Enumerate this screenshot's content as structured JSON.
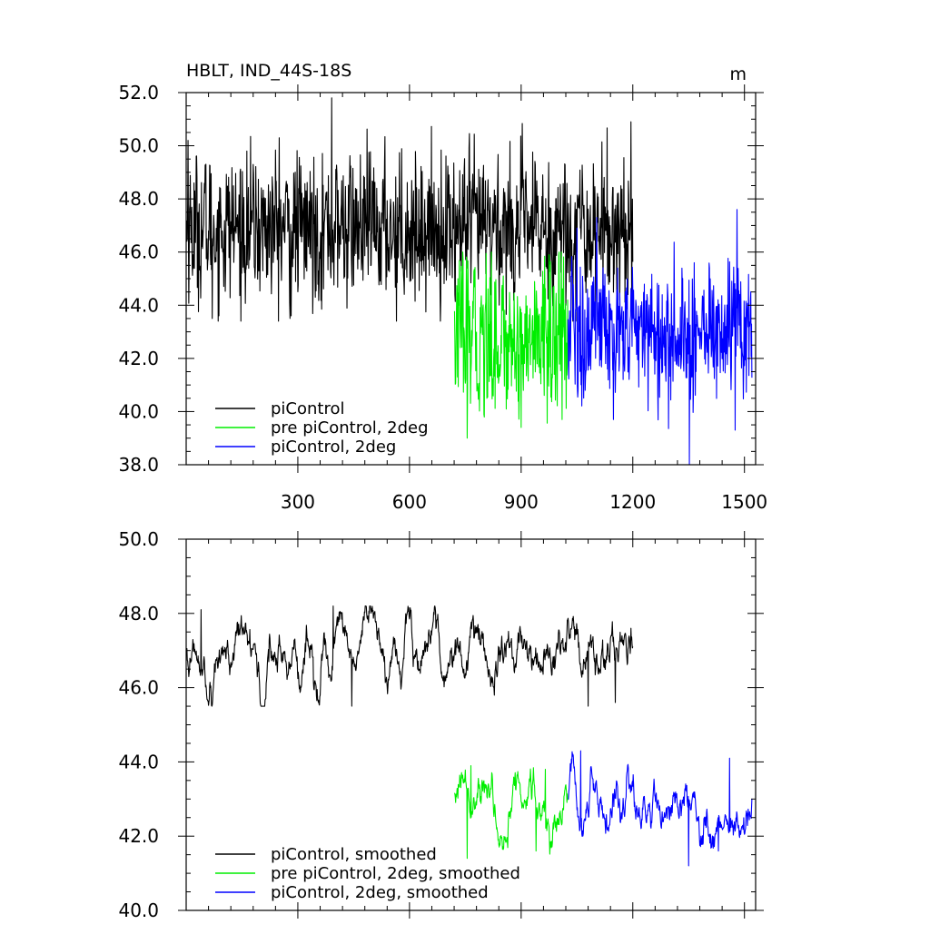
{
  "chart_data": [
    {
      "type": "line",
      "title": "HBLT, IND_44S-18S",
      "units": "m",
      "xlim": [
        0,
        1530
      ],
      "ylim": [
        38,
        52
      ],
      "xticks": [
        300,
        600,
        900,
        1200,
        1500
      ],
      "yticks": [
        38.0,
        40.0,
        42.0,
        44.0,
        46.0,
        48.0,
        50.0,
        52.0
      ],
      "ytick_labels": [
        "38.0",
        "40.0",
        "42.0",
        "44.0",
        "46.0",
        "48.0",
        "50.0",
        "52.0"
      ],
      "xtick_labels": [
        "300",
        "600",
        "900",
        "1200",
        "1500"
      ],
      "legend_position": "bottom-left",
      "series": [
        {
          "name": "piControl",
          "color": "#000000",
          "x_range": [
            1,
            1200
          ],
          "mean": 46.9,
          "spread": 1.35,
          "noise": "annual",
          "y_min": 43.4,
          "y_max": 51.8,
          "peaks": [
            [
              391,
              51.8
            ],
            [
              1195,
              50.9
            ],
            [
              5,
              50.2
            ],
            [
              250,
              50.3
            ]
          ],
          "troughs": [
            [
              70,
              43.5
            ],
            [
              282,
              43.6
            ],
            [
              565,
              43.4
            ],
            [
              1020,
              44.0
            ]
          ]
        },
        {
          "name": "pre piControl, 2deg",
          "color": "#00ee00",
          "x_range": [
            721,
            1025
          ],
          "mean": 42.7,
          "spread": 1.4,
          "noise": "annual",
          "y_min": 39.0,
          "y_max": 46.0,
          "peaks": [
            [
              730,
              45.0
            ],
            [
              820,
              46.0
            ],
            [
              975,
              45.9
            ]
          ],
          "troughs": [
            [
              755,
              39.0
            ],
            [
              900,
              39.4
            ],
            [
              1010,
              39.7
            ]
          ]
        },
        {
          "name": "piControl, 2deg",
          "color": "#0000ff",
          "x_range": [
            1026,
            1520
          ],
          "mean": 43.0,
          "spread": 1.3,
          "noise": "annual",
          "y_min": 38.0,
          "y_max": 47.6,
          "peaks": [
            [
              1103,
              47.3
            ],
            [
              1365,
              45.6
            ],
            [
              1480,
              47.6
            ],
            [
              1050,
              46.9
            ]
          ],
          "troughs": [
            [
              1352,
              38.0
            ],
            [
              1148,
              39.7
            ],
            [
              1475,
              39.3
            ]
          ]
        }
      ]
    },
    {
      "type": "line",
      "title": "",
      "xlim": [
        0,
        1530
      ],
      "ylim": [
        40,
        50
      ],
      "xticks": [
        300,
        600,
        900,
        1200,
        1500
      ],
      "yticks": [
        40.0,
        42.0,
        44.0,
        46.0,
        48.0,
        50.0
      ],
      "ytick_labels": [
        "40.0",
        "42.0",
        "44.0",
        "46.0",
        "48.0",
        "50.0"
      ],
      "xtick_labels": [],
      "legend_position": "bottom-left",
      "series": [
        {
          "name": "piControl, smoothed",
          "color": "#000000",
          "x_range": [
            1,
            1200
          ],
          "mean": 46.9,
          "spread": 0.55,
          "noise": "smooth",
          "y_min": 45.5,
          "y_max": 48.2,
          "peaks": [
            [
              40,
              48.1
            ],
            [
              395,
              48.2
            ],
            [
              1195,
              47.6
            ]
          ],
          "troughs": [
            [
              445,
              45.5
            ],
            [
              1080,
              45.5
            ],
            [
              1153,
              45.6
            ]
          ]
        },
        {
          "name": "pre piControl, 2deg, smoothed",
          "color": "#00ee00",
          "x_range": [
            721,
            1025
          ],
          "mean": 42.9,
          "spread": 0.55,
          "noise": "smooth",
          "y_min": 41.4,
          "y_max": 43.9,
          "peaks": [
            [
              765,
              43.9
            ],
            [
              965,
              43.8
            ]
          ],
          "troughs": [
            [
              755,
              41.4
            ],
            [
              940,
              41.6
            ]
          ]
        },
        {
          "name": "piControl, 2deg, smoothed",
          "color": "#0000ff",
          "x_range": [
            1026,
            1520
          ],
          "mean": 42.8,
          "spread": 0.5,
          "noise": "smooth",
          "y_min": 41.2,
          "y_max": 44.3,
          "peaks": [
            [
              1060,
              44.3
            ],
            [
              1460,
              44.1
            ]
          ],
          "troughs": [
            [
              1350,
              41.2
            ],
            [
              1430,
              41.6
            ]
          ]
        }
      ]
    }
  ]
}
